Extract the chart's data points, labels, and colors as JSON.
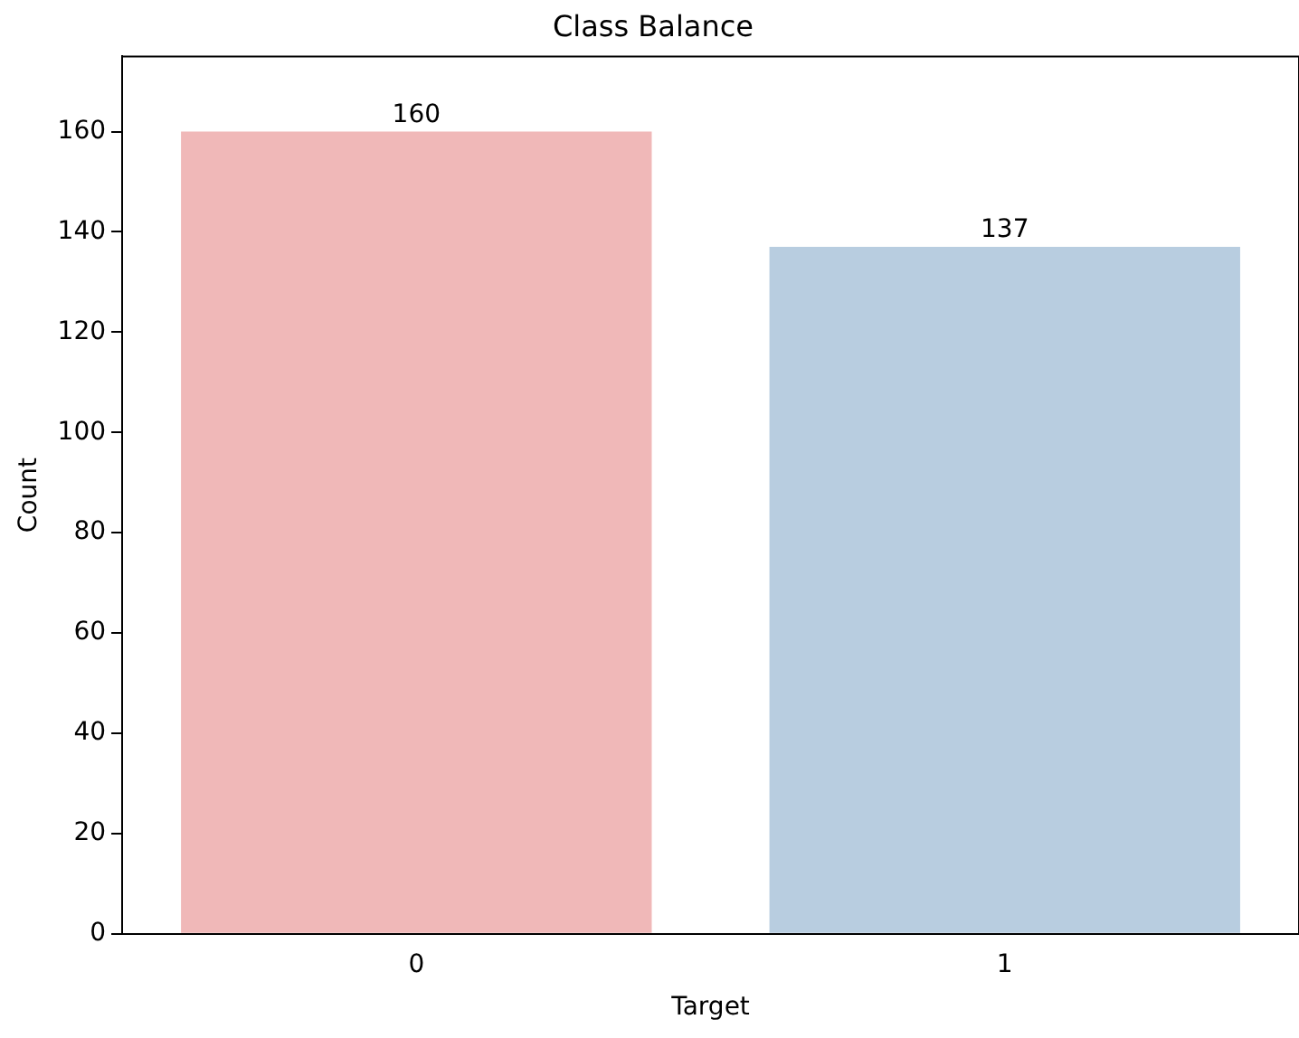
{
  "chart_data": {
    "type": "bar",
    "title": "Class Balance",
    "xlabel": "Target",
    "ylabel": "Count",
    "categories": [
      "0",
      "1"
    ],
    "values": [
      160,
      137
    ],
    "colors": [
      "#f0b8b8",
      "#b8cde0"
    ],
    "ylim": [
      0,
      175
    ],
    "yticks": [
      0,
      20,
      40,
      60,
      80,
      100,
      120,
      140,
      160
    ],
    "grid": false,
    "legend": false,
    "data_labels": true
  }
}
